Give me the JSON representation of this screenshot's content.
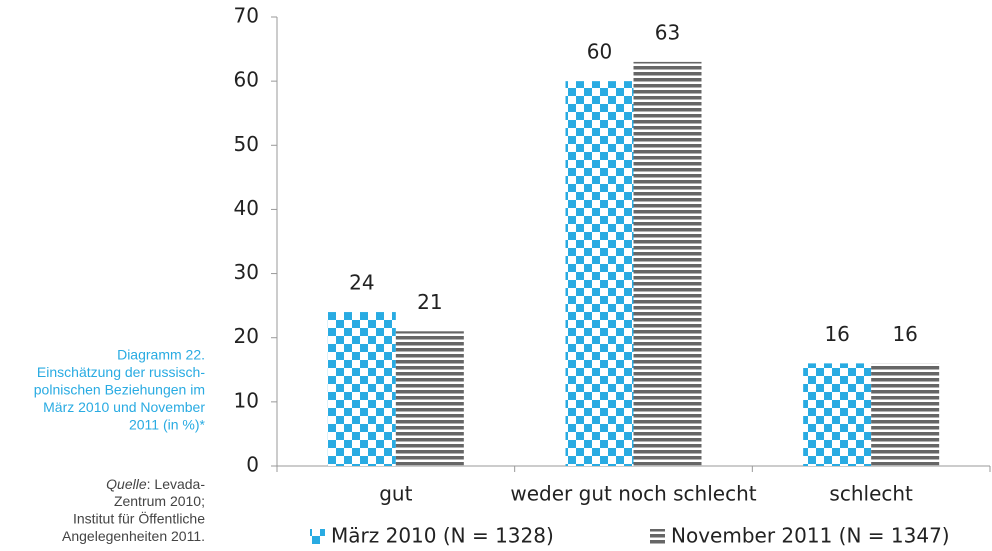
{
  "chart_data": {
    "type": "bar",
    "caption_lines": [
      "Diagramm 22.",
      "Einschätzung der russisch-",
      "polnischen Beziehungen im",
      "März 2010 und November",
      "2011 (in %)*"
    ],
    "source_label": "Quelle",
    "source_lines": [
      ": Levada-",
      "Zentrum 2010;",
      "Institut für Öffentliche",
      "Angelegenheiten 2011."
    ],
    "categories": [
      "gut",
      "weder gut noch schlecht",
      "schlecht"
    ],
    "series": [
      {
        "name": "März 2010 (N = 1328)",
        "color": "#29abe2",
        "pattern": "checker",
        "values": [
          24,
          60,
          16
        ]
      },
      {
        "name": "November 2011 (N = 1347)",
        "color": "#666666",
        "pattern": "stripes",
        "values": [
          21,
          63,
          16
        ]
      }
    ],
    "ylim": [
      0,
      70
    ],
    "yticks": [
      0,
      10,
      20,
      30,
      40,
      50,
      60,
      70
    ],
    "legend": "bottom"
  }
}
